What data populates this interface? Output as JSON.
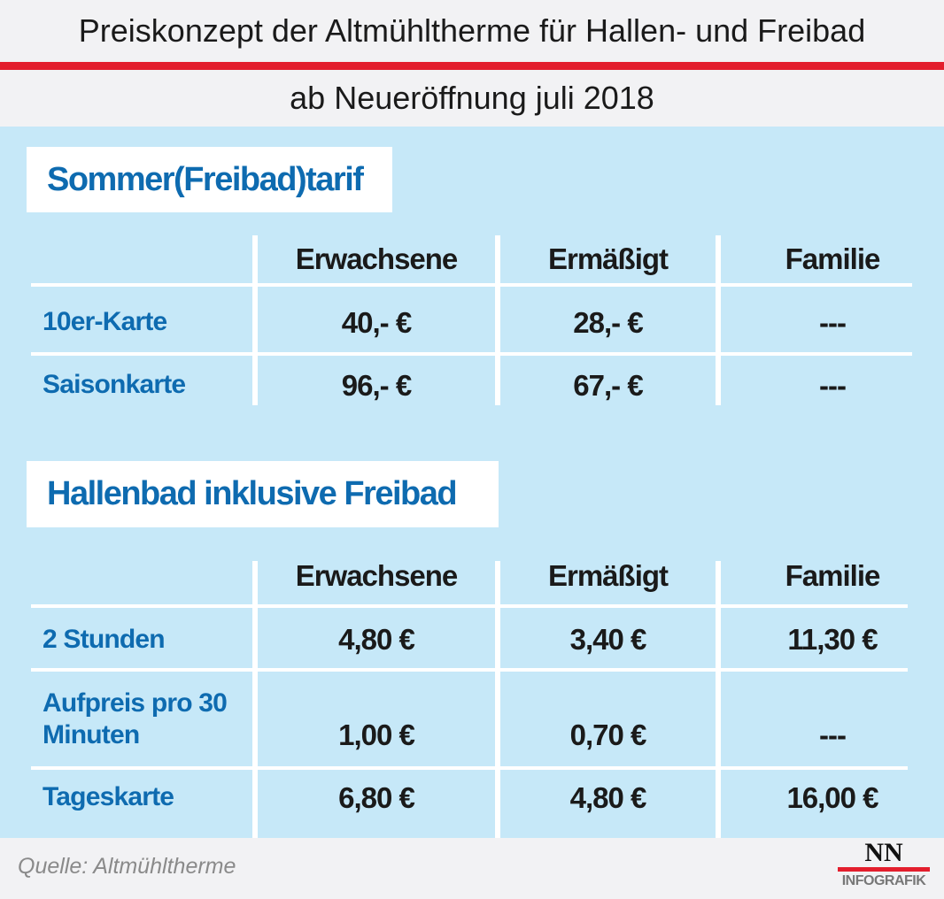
{
  "title": "Preiskonzept der Altmühltherme für Hallen- und Freibad",
  "subtitle": "ab Neueröffnung juli 2018",
  "columns": [
    "Erwachsene",
    "Ermäßigt",
    "Familie"
  ],
  "sections": [
    {
      "title": "Sommer(Freibad)tarif",
      "rows": [
        {
          "label": "10er-Karte",
          "values": [
            "40,- €",
            "28,- €",
            "---"
          ]
        },
        {
          "label": "Saisonkarte",
          "values": [
            "96,- €",
            "67,- €",
            "---"
          ]
        }
      ]
    },
    {
      "title": "Hallenbad inklusive Freibad",
      "rows": [
        {
          "label": "2 Stunden",
          "values": [
            "4,80 €",
            "3,40 €",
            "11,30 €"
          ]
        },
        {
          "label": "Aufpreis pro 30 Minuten",
          "values": [
            "1,00 €",
            "0,70 €",
            "---"
          ]
        },
        {
          "label": "Tageskarte",
          "values": [
            "6,80 €",
            "4,80 €",
            "16,00 €"
          ]
        }
      ]
    }
  ],
  "source": "Quelle: Altmühltherme",
  "logo": {
    "top": "NN",
    "bottom": "INFOGRAFIK"
  },
  "colors": {
    "accent_red": "#e31e2d",
    "panel_blue": "#c6e8f8",
    "label_blue": "#0e6bb0"
  }
}
